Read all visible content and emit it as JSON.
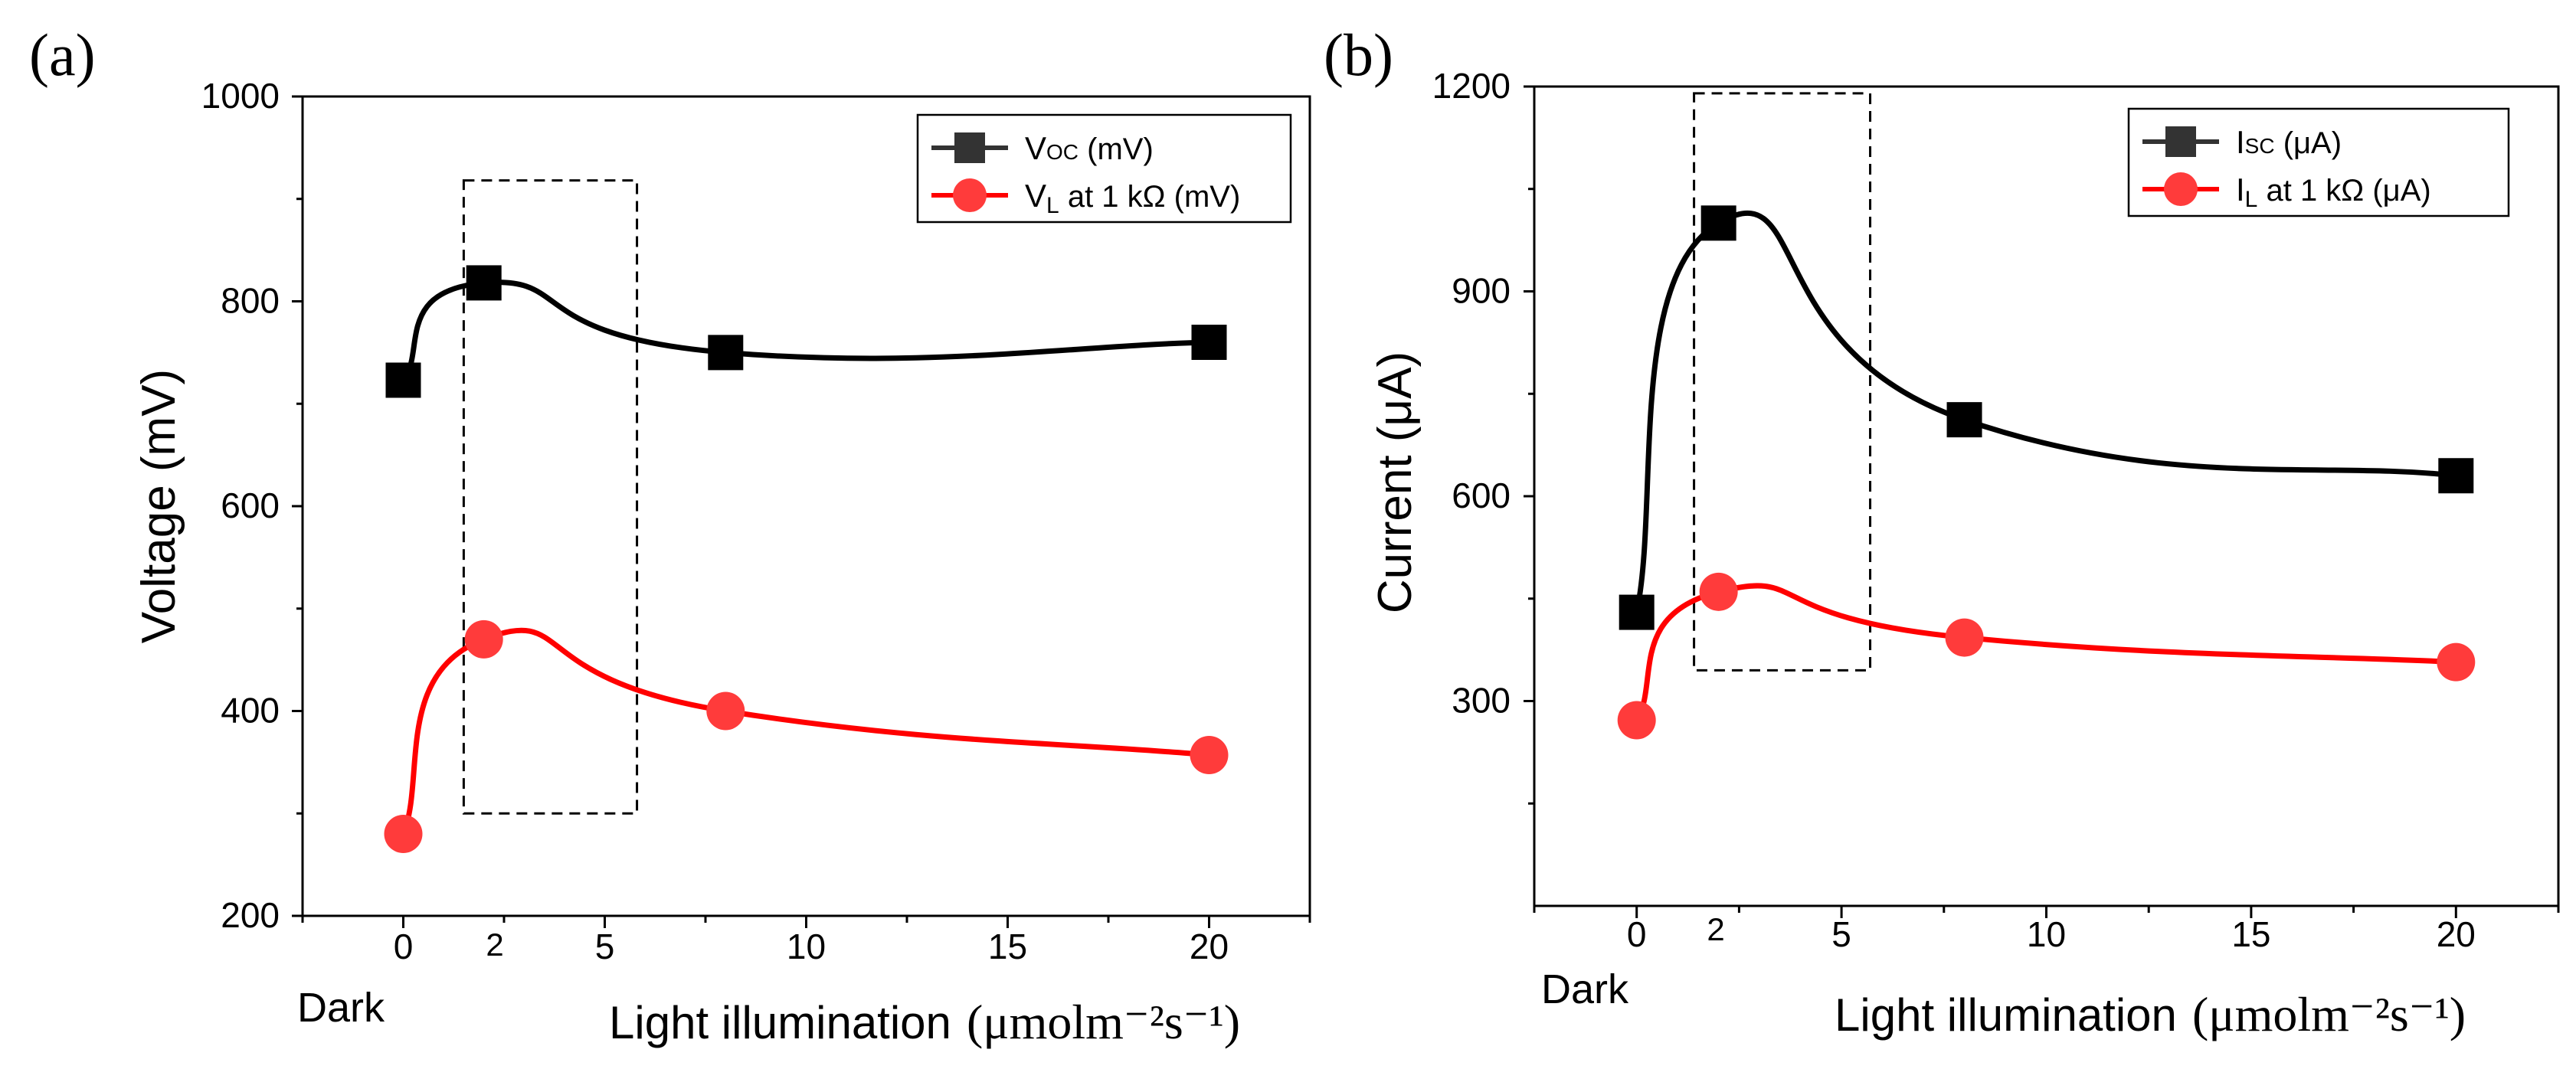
{
  "colors": {
    "series_black": "#000000",
    "series_red": "#ff0000",
    "marker_red": "#ff3b3b",
    "legend_square": "#333333"
  },
  "chart_data": [
    {
      "type": "line",
      "panel_label": "(a)",
      "xlabel": "Light illumination",
      "xlabel_unit": "(μmolm⁻²s⁻¹)",
      "ylabel": "Voltage (mV)",
      "xlim": [
        -2.5,
        22.5
      ],
      "ylim": [
        200,
        1000
      ],
      "xticks": [
        0,
        5,
        10,
        15,
        20
      ],
      "xtick_labels": [
        "0",
        "5",
        "10",
        "15",
        "20"
      ],
      "yticks": [
        200,
        400,
        600,
        800,
        1000
      ],
      "ytick_labels": [
        "200",
        "400",
        "600",
        "800",
        "1000"
      ],
      "extra_labels": {
        "dark": "Dark",
        "two": "2"
      },
      "x": [
        0,
        2,
        8,
        20
      ],
      "series": [
        {
          "name": "VOC (mV)",
          "legend_main": "V",
          "legend_sub": "OC",
          "legend_rest": " (mV)",
          "color": "#000000",
          "marker": "square",
          "values": [
            723,
            818,
            750,
            760
          ]
        },
        {
          "name": "VL at 1 kΩ (mV)",
          "legend_main": "V",
          "legend_sub": "L",
          "legend_rest": " at 1 kΩ (mV)",
          "color": "#ff0000",
          "marker": "circle",
          "values": [
            280,
            470,
            400,
            357
          ]
        }
      ],
      "highlight_box": {
        "x_range": [
          1.5,
          5.8
        ],
        "y_range": [
          300,
          918
        ]
      },
      "legend_position": "top-right"
    },
    {
      "type": "line",
      "panel_label": "(b)",
      "xlabel": "Light illumination",
      "xlabel_unit": "(μmolm⁻²s⁻¹)",
      "ylabel": "Current (μA)",
      "xlim": [
        -2.5,
        22.5
      ],
      "ylim": [
        0,
        1200
      ],
      "xticks": [
        0,
        5,
        10,
        15,
        20
      ],
      "xtick_labels": [
        "0",
        "5",
        "10",
        "15",
        "20"
      ],
      "yticks": [
        300,
        600,
        900,
        1200
      ],
      "ytick_labels": [
        "300",
        "600",
        "900",
        "1200"
      ],
      "minor_yticks": [
        150,
        450,
        750,
        1050
      ],
      "extra_labels": {
        "dark": "Dark",
        "two": "2"
      },
      "x": [
        0,
        2,
        8,
        20
      ],
      "series": [
        {
          "name": "ISC (μA)",
          "legend_main": "I",
          "legend_sub": "SC",
          "legend_rest": "  (μA)",
          "color": "#000000",
          "marker": "square",
          "values": [
            430,
            1000,
            712,
            630
          ]
        },
        {
          "name": "IL at 1 kΩ (μA)",
          "legend_main": "I",
          "legend_sub": "L",
          "legend_rest": " at 1 kΩ (μA)",
          "color": "#ff0000",
          "marker": "circle",
          "values": [
            272,
            460,
            393,
            357
          ]
        }
      ],
      "highlight_box": {
        "x_range": [
          1.4,
          5.7
        ],
        "y_range": [
          345,
          1190
        ]
      },
      "legend_position": "top-right"
    }
  ]
}
